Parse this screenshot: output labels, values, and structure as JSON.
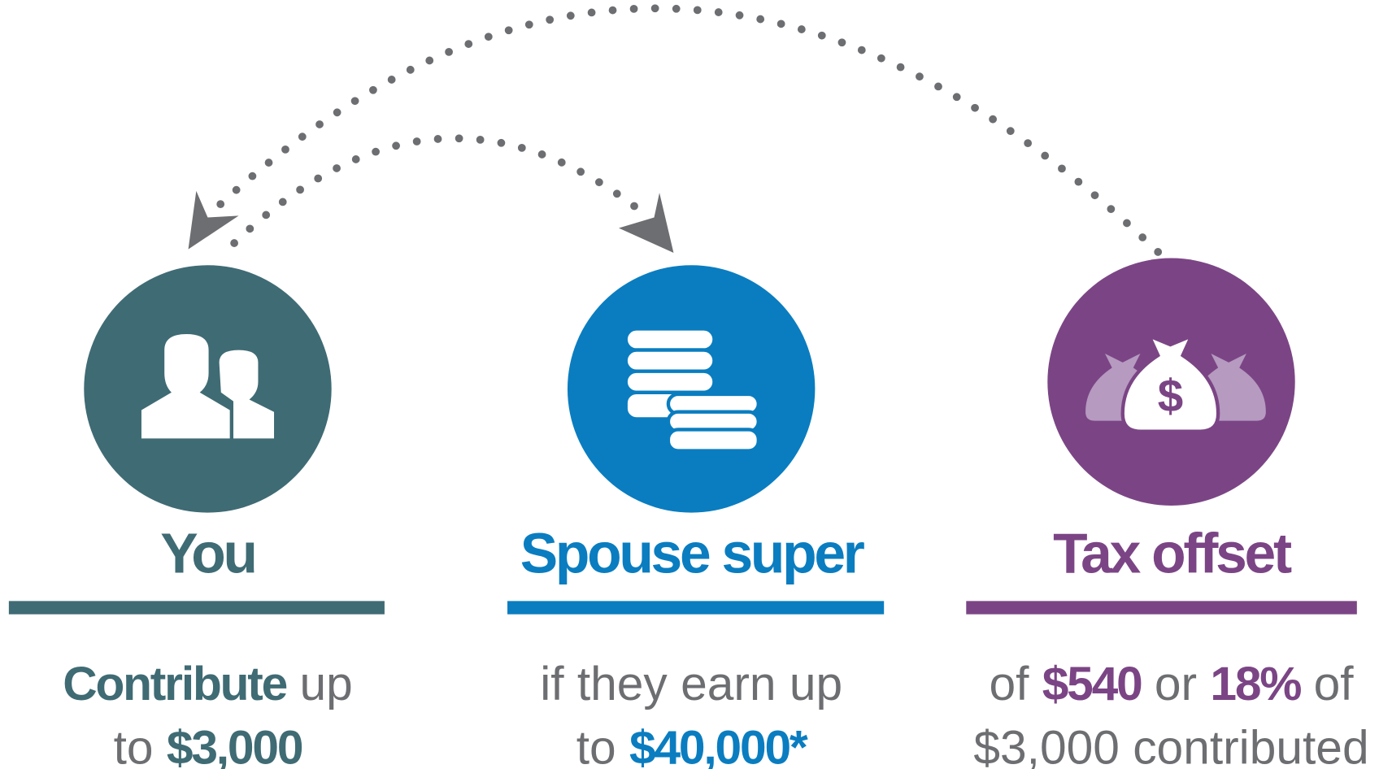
{
  "columns": [
    {
      "title": "You",
      "color": "#3f6b74",
      "lines": [
        [
          {
            "text": "Contribute",
            "bold": true
          },
          {
            "text": " up"
          }
        ],
        [
          {
            "text": "to "
          },
          {
            "text": "$3,000",
            "bold": true
          }
        ]
      ]
    },
    {
      "title": "Spouse super",
      "color": "#0a7dc0",
      "lines": [
        [
          {
            "text": "if they earn up"
          }
        ],
        [
          {
            "text": "to "
          },
          {
            "text": "$40,000*",
            "bold": true
          }
        ]
      ]
    },
    {
      "title": "Tax offset",
      "color": "#7b4585",
      "lines": [
        [
          {
            "text": "of "
          },
          {
            "text": "$540",
            "bold": true
          },
          {
            "text": " or "
          },
          {
            "text": "18%",
            "bold": true
          },
          {
            "text": " of"
          }
        ],
        [
          {
            "text": "$3,000 contributed"
          }
        ]
      ]
    }
  ]
}
